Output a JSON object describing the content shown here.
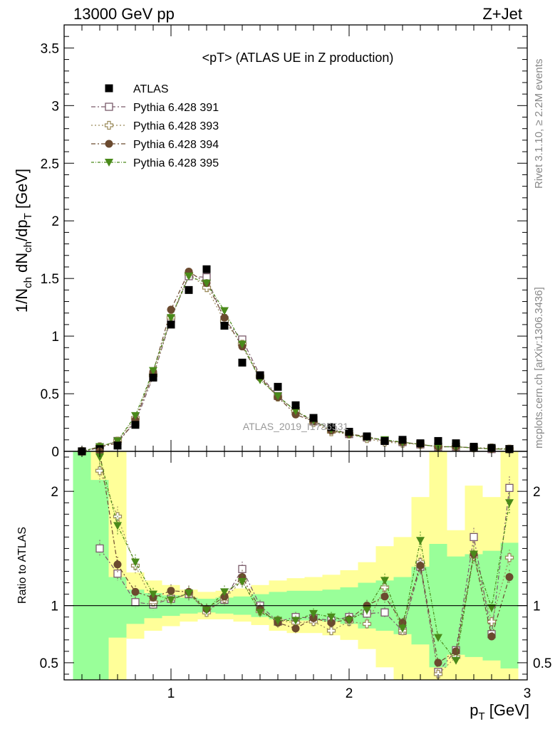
{
  "header": {
    "left": "13000 GeV pp",
    "right": "Z+Jet"
  },
  "side_text": {
    "rivet": "Rivet 3.1.10, ≥ 2.2M events",
    "mcplots": "mcplots.cern.ch [arXiv:1306.3436]"
  },
  "watermark": "ATLAS_2019_I1736531",
  "colors": {
    "atlas": "#000000",
    "s391": "#7a5a6a",
    "s393": "#9a8a5a",
    "s394": "#6b4a2f",
    "s395": "#4a8a1a",
    "band_green": "#99ff99",
    "band_yellow": "#ffff99"
  },
  "chart_data": [
    {
      "type": "scatter",
      "title": "<pT> (ATLAS UE in Z production)",
      "ylabel": "1/N_ch dN_ch/dp_T [GeV]",
      "xlim": [
        0.4,
        3.0
      ],
      "ylim": [
        0,
        3.7
      ],
      "y_ticks": [
        0,
        0.5,
        1,
        1.5,
        2,
        2.5,
        3,
        3.5
      ],
      "y_tick_labels": [
        "0",
        "0.5",
        "1",
        "1.5",
        "2",
        "2.5",
        "3",
        "3.5"
      ],
      "legend_position": "top-left",
      "x": [
        0.5,
        0.6,
        0.7,
        0.8,
        0.9,
        1.0,
        1.1,
        1.2,
        1.3,
        1.4,
        1.5,
        1.6,
        1.7,
        1.8,
        1.9,
        2.0,
        2.1,
        2.2,
        2.3,
        2.4,
        2.5,
        2.6,
        2.7,
        2.8,
        2.9
      ],
      "series": [
        {
          "name": "ATLAS",
          "marker": "filled-square",
          "values": [
            0.0,
            0.02,
            0.05,
            0.23,
            0.64,
            1.1,
            1.4,
            1.58,
            1.09,
            0.77,
            0.66,
            0.56,
            0.4,
            0.29,
            0.21,
            0.17,
            0.13,
            0.09,
            0.1,
            0.07,
            0.09,
            0.07,
            0.04,
            0.03,
            0.02
          ]
        },
        {
          "name": "Pythia 6.428 391",
          "marker": "open-square",
          "values": [
            0.0,
            0.03,
            0.09,
            0.25,
            0.65,
            1.15,
            1.52,
            1.51,
            1.14,
            0.97,
            0.66,
            0.48,
            0.35,
            0.26,
            0.2,
            0.15,
            0.12,
            0.09,
            0.08,
            0.06,
            0.04,
            0.04,
            0.03,
            0.02,
            0.02
          ]
        },
        {
          "name": "Pythia 6.428 393",
          "marker": "open-cross",
          "values": [
            0.0,
            0.04,
            0.09,
            0.29,
            0.66,
            1.16,
            1.54,
            1.42,
            1.13,
            0.93,
            0.65,
            0.47,
            0.35,
            0.25,
            0.17,
            0.15,
            0.11,
            0.08,
            0.07,
            0.06,
            0.04,
            0.04,
            0.03,
            0.03,
            0.02
          ]
        },
        {
          "name": "Pythia 6.428 394",
          "marker": "filled-circle",
          "values": [
            0.0,
            0.04,
            0.07,
            0.27,
            0.69,
            1.23,
            1.56,
            1.46,
            1.16,
            0.91,
            0.64,
            0.47,
            0.32,
            0.26,
            0.18,
            0.15,
            0.13,
            0.09,
            0.08,
            0.06,
            0.04,
            0.04,
            0.03,
            0.02,
            0.02
          ]
        },
        {
          "name": "Pythia 6.428 395",
          "marker": "filled-triangle-down",
          "values": [
            0.0,
            0.04,
            0.09,
            0.31,
            0.7,
            1.16,
            1.52,
            1.46,
            1.22,
            0.93,
            0.62,
            0.48,
            0.35,
            0.27,
            0.19,
            0.15,
            0.12,
            0.1,
            0.08,
            0.06,
            0.04,
            0.04,
            0.03,
            0.02,
            0.02
          ]
        }
      ]
    },
    {
      "type": "scatter",
      "ylabel": "Ratio to ATLAS",
      "xlabel": "p_T [GeV]",
      "xlim": [
        0.4,
        3.0
      ],
      "ylim": [
        0.35,
        2.35
      ],
      "reference_line": 1,
      "x_ticks": [
        1,
        2,
        3
      ],
      "x_tick_labels": [
        "1",
        "2",
        "3"
      ],
      "y_ticks": [
        0.5,
        1,
        2
      ],
      "y_tick_labels": [
        "0.5",
        "1",
        "2"
      ],
      "x": [
        0.5,
        0.6,
        0.7,
        0.8,
        0.9,
        1.0,
        1.1,
        1.2,
        1.3,
        1.4,
        1.5,
        1.6,
        1.7,
        1.8,
        1.9,
        2.0,
        2.1,
        2.2,
        2.3,
        2.4,
        2.5,
        2.6,
        2.7,
        2.8,
        2.9
      ],
      "bands": {
        "bin_edges": [
          0.45,
          0.55,
          0.65,
          0.75,
          0.85,
          0.95,
          1.05,
          1.15,
          1.25,
          1.35,
          1.45,
          1.55,
          1.65,
          1.75,
          1.85,
          1.95,
          2.05,
          2.15,
          2.25,
          2.35,
          2.45,
          2.55,
          2.65,
          2.75,
          2.85,
          2.95
        ],
        "green_low": [
          0.35,
          0.35,
          0.72,
          0.84,
          0.89,
          0.91,
          0.93,
          0.94,
          0.93,
          0.92,
          0.9,
          0.88,
          0.87,
          0.87,
          0.86,
          0.84,
          0.8,
          0.78,
          0.75,
          0.66,
          0.46,
          0.57,
          0.55,
          0.52,
          0.45
        ],
        "green_high": [
          2.35,
          2.1,
          1.25,
          1.14,
          1.11,
          1.09,
          1.07,
          1.06,
          1.07,
          1.08,
          1.1,
          1.12,
          1.13,
          1.13,
          1.14,
          1.16,
          1.2,
          1.22,
          1.25,
          1.34,
          1.54,
          1.43,
          1.45,
          1.48,
          1.55
        ],
        "yellow_low": [
          0.35,
          0.35,
          0.35,
          0.71,
          0.78,
          0.82,
          0.86,
          0.88,
          0.88,
          0.86,
          0.83,
          0.78,
          0.76,
          0.76,
          0.74,
          0.7,
          0.62,
          0.46,
          0.35,
          0.35,
          0.35,
          0.35,
          0.35,
          0.35,
          0.35
        ],
        "yellow_high": [
          2.35,
          2.35,
          2.35,
          1.29,
          1.22,
          1.18,
          1.14,
          1.12,
          1.13,
          1.15,
          1.18,
          1.22,
          1.24,
          1.25,
          1.27,
          1.31,
          1.38,
          1.52,
          1.6,
          1.95,
          2.35,
          1.66,
          2.05,
          1.95,
          2.35
        ]
      },
      "series": [
        {
          "name": "Pythia 6.428 391",
          "values": [
            null,
            1.5,
            1.28,
            1.03,
            1.01,
            1.06,
            1.1,
            0.96,
            1.05,
            1.32,
            1.0,
            0.86,
            0.9,
            0.89,
            0.87,
            0.9,
            0.93,
            0.94,
            0.78,
            1.34,
            0.42,
            0.61,
            1.6,
            0.75,
            2.03
          ]
        },
        {
          "name": "Pythia 6.428 393",
          "values": [
            null,
            2.18,
            1.78,
            1.35,
            1.03,
            1.06,
            1.11,
            0.94,
            1.06,
            1.22,
            0.95,
            0.87,
            0.85,
            0.86,
            0.78,
            0.86,
            0.84,
            1.16,
            0.78,
            1.38,
            0.4,
            0.55,
            1.43,
            0.86,
            1.42
          ]
        },
        {
          "name": "Pythia 6.428 394",
          "values": [
            null,
            2.35,
            1.36,
            1.12,
            1.07,
            1.13,
            1.12,
            0.97,
            1.08,
            1.25,
            0.97,
            0.85,
            0.8,
            0.89,
            0.85,
            0.88,
            1.0,
            1.08,
            0.85,
            1.35,
            0.5,
            0.6,
            1.45,
            0.73,
            1.25
          ]
        },
        {
          "name": "Pythia 6.428 395",
          "values": [
            null,
            2.3,
            1.7,
            1.38,
            1.1,
            1.05,
            1.11,
            0.96,
            1.12,
            1.21,
            0.94,
            0.87,
            0.87,
            0.93,
            0.9,
            0.87,
            0.96,
            1.22,
            0.8,
            1.57,
            0.72,
            0.52,
            1.45,
            0.98,
            1.9
          ]
        }
      ]
    }
  ]
}
